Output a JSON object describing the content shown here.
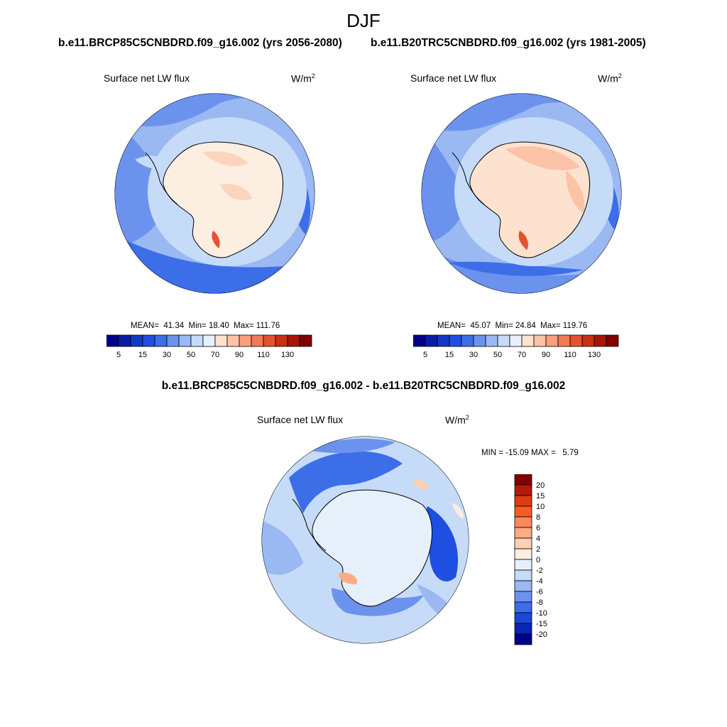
{
  "season": "DJF",
  "panels": [
    {
      "case_title": "b.e11.BRCP85C5CNBDRD.f09_g16.002 (yrs 2056-2080)",
      "variable": "Surface net LW flux",
      "units_base": "W/m",
      "units_exp": "2",
      "mean_label": "MEAN=",
      "mean": "41.34",
      "min_label": "Min=",
      "min": "18.40",
      "max_label": "Max=",
      "max": "111.76"
    },
    {
      "case_title": "b.e11.B20TRC5CNBDRD.f09_g16.002 (yrs 1981-2005)",
      "variable": "Surface net LW flux",
      "units_base": "W/m",
      "units_exp": "2",
      "mean_label": "MEAN=",
      "mean": "45.07",
      "min_label": "Min=",
      "min": "24.84",
      "max_label": "Max=",
      "max": "119.76"
    }
  ],
  "diff_panel": {
    "title": "b.e11.BRCP85C5CNBDRD.f09_g16.002 - b.e11.B20TRC5CNBDRD.f09_g16.002",
    "variable": "Surface net LW flux",
    "units_base": "W/m",
    "units_exp": "2",
    "stats": "MIN = -15.09 MAX =   5.79"
  },
  "horizontal_colorbar": {
    "colors": [
      "#00008a",
      "#0a1ca8",
      "#1537c8",
      "#1f4fe0",
      "#3c6ee8",
      "#6b93ee",
      "#9ab8f2",
      "#c6dbf7",
      "#e8f1fb",
      "#fde2cf",
      "#fcc3a6",
      "#f9a07f",
      "#f27a58",
      "#e5522f",
      "#ca2e14",
      "#a81608",
      "#800000"
    ],
    "labels": [
      "5",
      "15",
      "30",
      "50",
      "70",
      "90",
      "110",
      "130"
    ]
  },
  "vertical_colorbar": {
    "colors": [
      "#800000",
      "#b31a0a",
      "#e03a12",
      "#fa5a24",
      "#fb8a5a",
      "#fcac85",
      "#fdd0b6",
      "#fdeee2",
      "#e6f0fb",
      "#c6dbf7",
      "#9ab8f2",
      "#6b93ee",
      "#3c6ee8",
      "#1c47d8",
      "#0a26b0",
      "#00008a"
    ],
    "labels": [
      "20",
      "15",
      "10",
      "8",
      "6",
      "4",
      "2",
      "0",
      "-2",
      "-4",
      "-6",
      "-8",
      "-10",
      "-15",
      "-20"
    ]
  }
}
